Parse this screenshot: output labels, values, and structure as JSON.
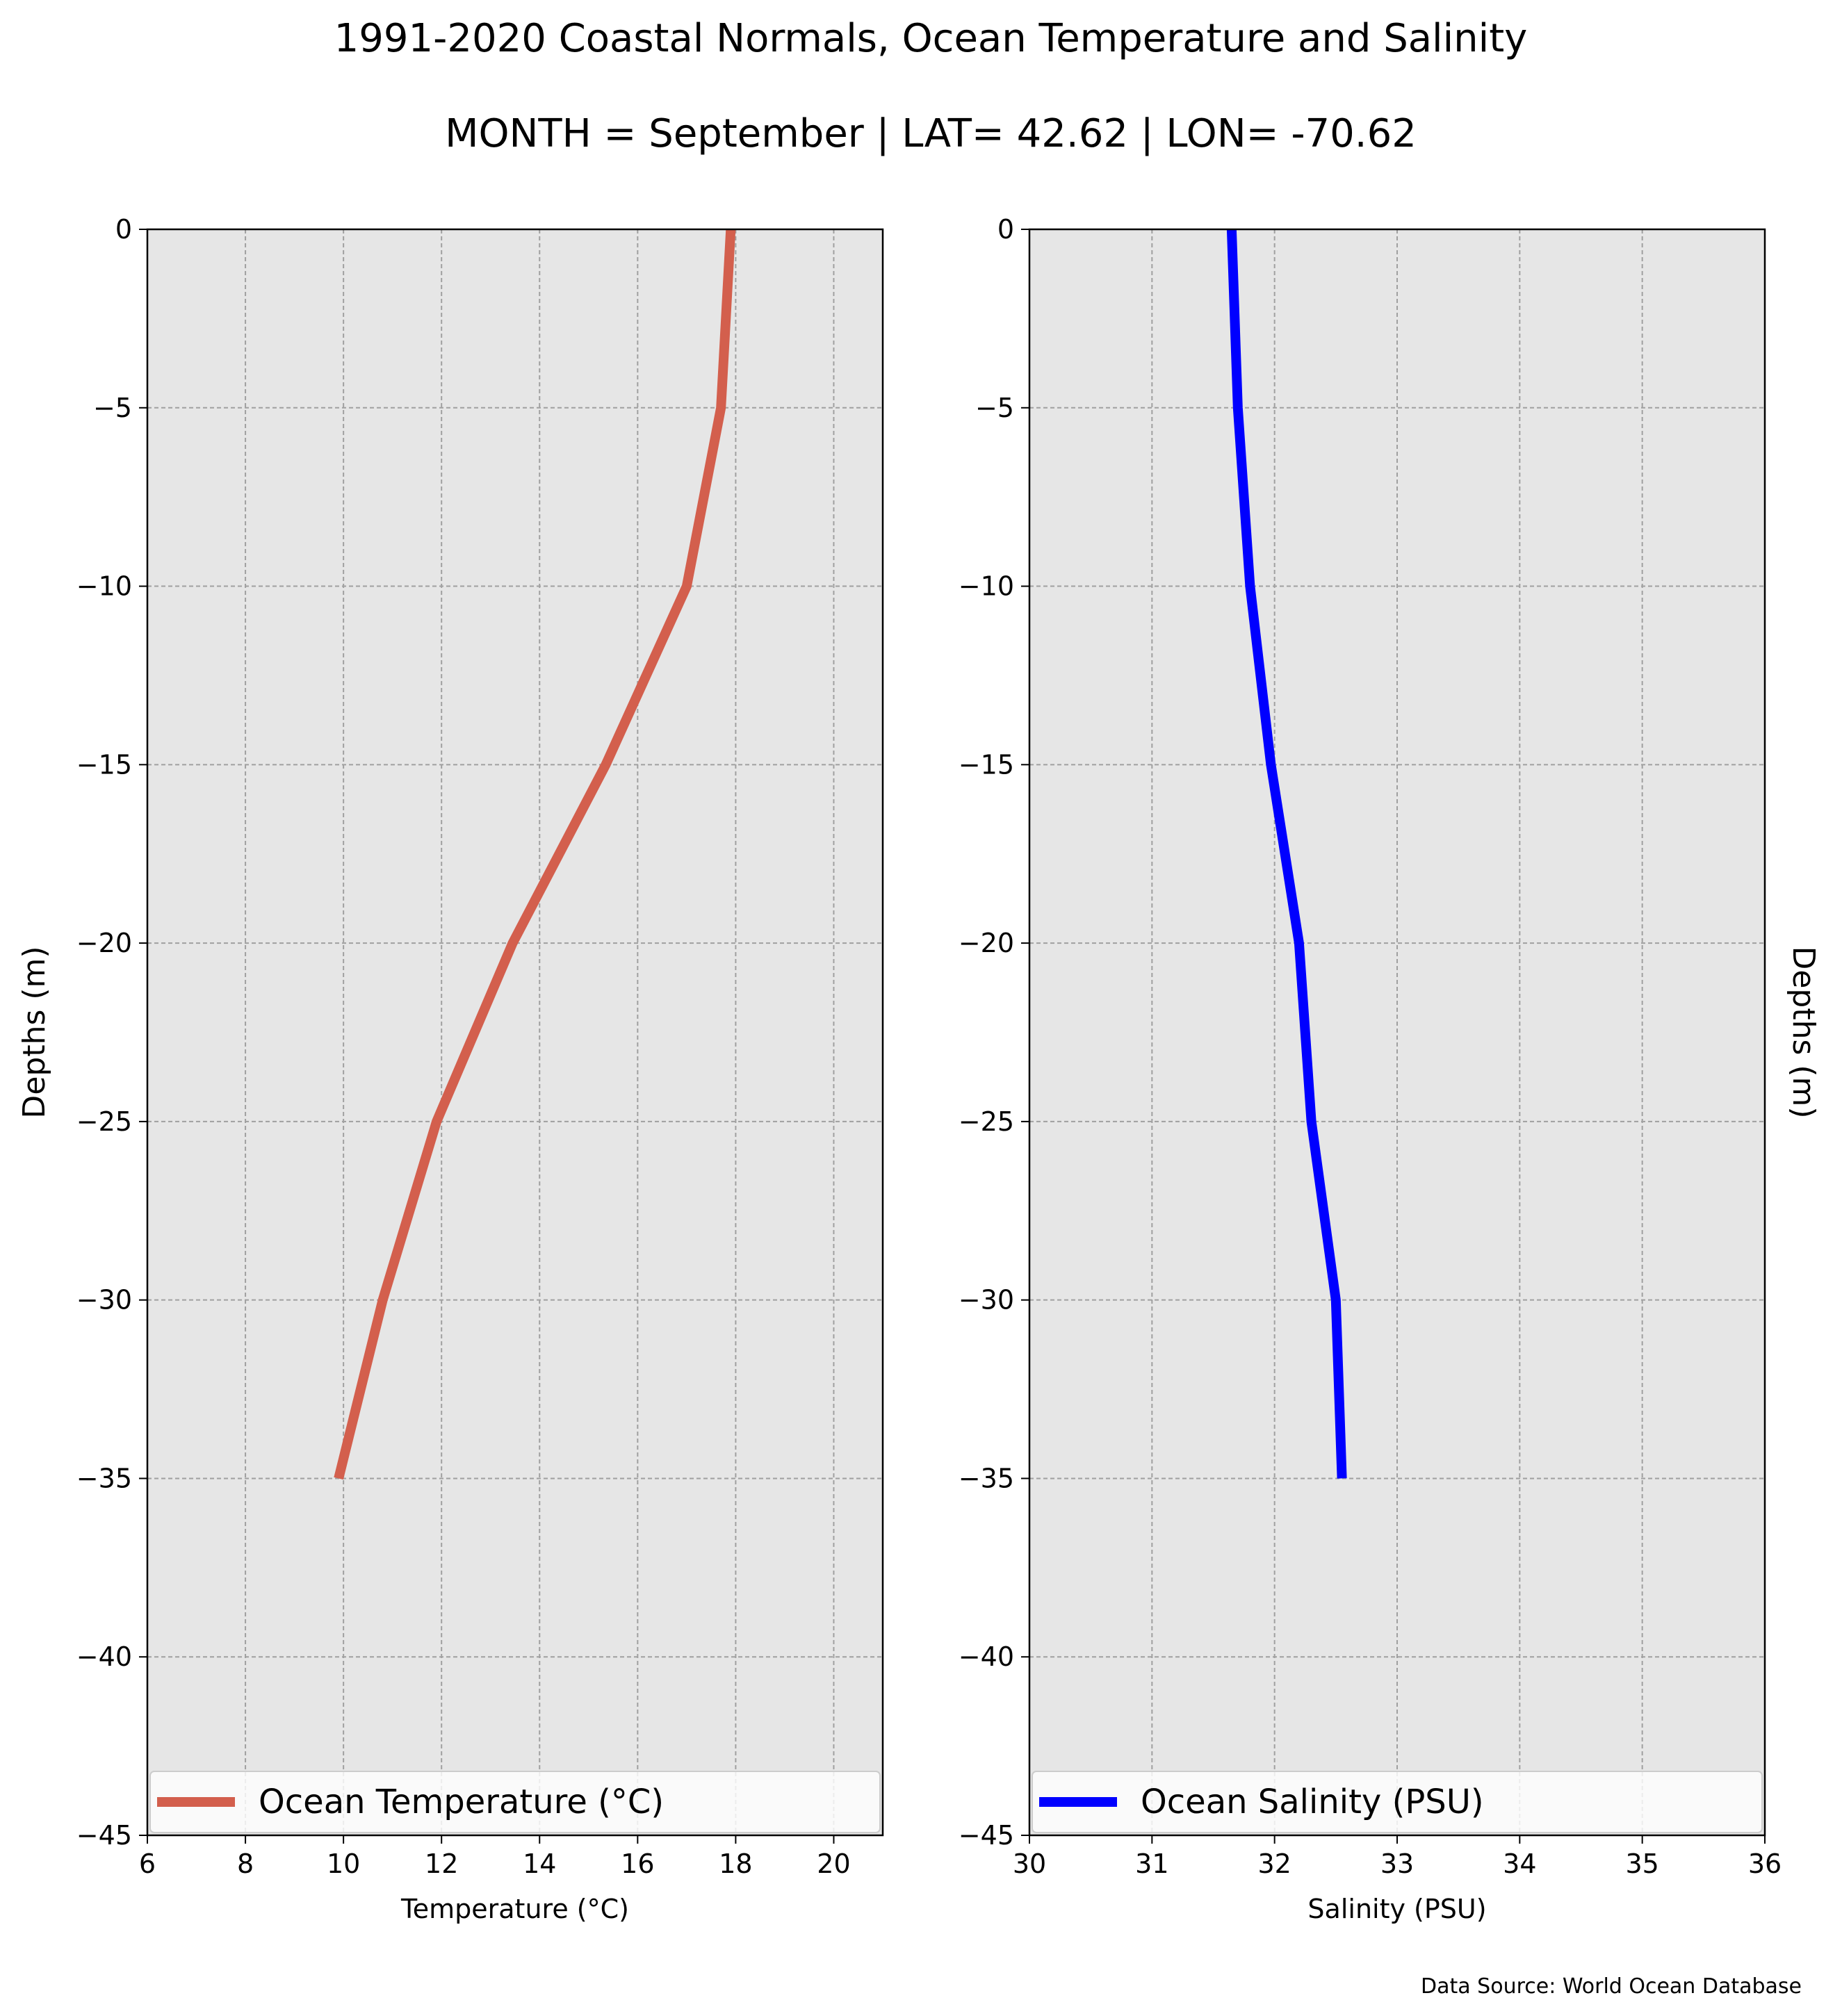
{
  "figure": {
    "title_line1": "1991-2020 Coastal Normals, Ocean Temperature and Salinity",
    "title_line2": "MONTH = September | LAT= 42.62 | LON= -70.62",
    "source": "Data Source: World Ocean Database"
  },
  "chart_data": [
    {
      "type": "line",
      "xlabel": "Temperature ($^\\circ$C)",
      "xlabel_display": "Temperature (°C)",
      "ylabel": "Depths (m)",
      "xlim": [
        6,
        21
      ],
      "ylim": [
        -45,
        0
      ],
      "xticks": [
        "6",
        "8",
        "10",
        "12",
        "14",
        "16",
        "18",
        "20"
      ],
      "xtick_values": [
        6,
        8,
        10,
        12,
        14,
        16,
        18,
        20
      ],
      "yticks": [
        "0",
        "−5",
        "−10",
        "−15",
        "−20",
        "−25",
        "−30",
        "−35",
        "−40",
        "−45"
      ],
      "ytick_values": [
        0,
        -5,
        -10,
        -15,
        -20,
        -25,
        -30,
        -35,
        -40,
        -45
      ],
      "grid": true,
      "legend_position": "lower center",
      "series": [
        {
          "name": "Ocean Temperature (°C)",
          "color": "#d35f4d",
          "x": [
            17.9,
            17.7,
            17.0,
            15.35,
            13.45,
            11.9,
            10.8,
            9.9
          ],
          "y": [
            0,
            -5,
            -10,
            -15,
            -20,
            -25,
            -30,
            -35
          ]
        }
      ]
    },
    {
      "type": "line",
      "xlabel": "Salinity (PSU)",
      "ylabel": "Depths (m)",
      "xlim": [
        30,
        36
      ],
      "ylim": [
        -45,
        0
      ],
      "xticks": [
        "30",
        "31",
        "32",
        "33",
        "34",
        "35",
        "36"
      ],
      "xtick_values": [
        30,
        31,
        32,
        33,
        34,
        35,
        36
      ],
      "yticks": [
        "0",
        "−5",
        "−10",
        "−15",
        "−20",
        "−25",
        "−30",
        "−35",
        "−40",
        "−45"
      ],
      "ytick_values": [
        0,
        -5,
        -10,
        -15,
        -20,
        -25,
        -30,
        -35,
        -40,
        -45
      ],
      "grid": true,
      "legend_position": "lower center",
      "series": [
        {
          "name": "Ocean Salinity (PSU)",
          "color": "#0000ff",
          "x": [
            31.65,
            31.7,
            31.8,
            31.97,
            32.2,
            32.3,
            32.5,
            32.55
          ],
          "y": [
            0,
            -5,
            -10,
            -15,
            -20,
            -25,
            -30,
            -35
          ]
        }
      ]
    }
  ]
}
